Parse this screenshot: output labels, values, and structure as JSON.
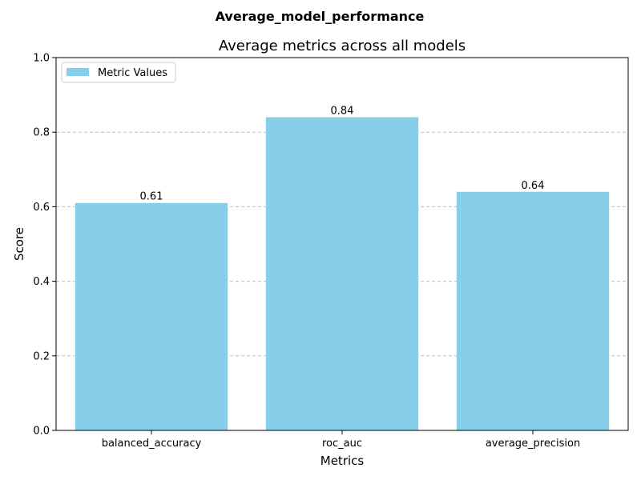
{
  "figure": {
    "suptitle": "Average_model_performance"
  },
  "chart_data": {
    "type": "bar",
    "title": "Average metrics across all models",
    "xlabel": "Metrics",
    "ylabel": "Score",
    "categories": [
      "balanced_accuracy",
      "roc_auc",
      "average_precision"
    ],
    "series": [
      {
        "name": "Metric Values",
        "values": [
          0.61,
          0.84,
          0.64
        ],
        "color": "#87ceeb"
      }
    ],
    "data_labels": [
      "0.61",
      "0.84",
      "0.64"
    ],
    "ylim": [
      0,
      1.0
    ],
    "yticks": [
      0.0,
      0.2,
      0.4,
      0.6,
      0.8,
      1.0
    ],
    "ytick_labels": [
      "0.0",
      "0.2",
      "0.4",
      "0.6",
      "0.8",
      "1.0"
    ],
    "grid": {
      "axis": "y",
      "style": "dashed",
      "color": "#bfbfbf"
    },
    "legend": {
      "position": "top-left",
      "entries": [
        "Metric Values"
      ]
    }
  }
}
